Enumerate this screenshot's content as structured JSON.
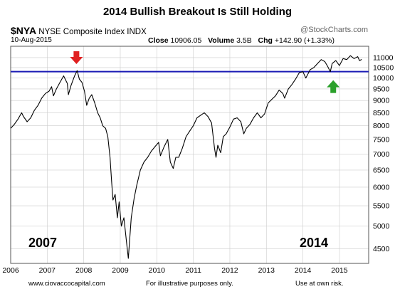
{
  "header": {
    "title": "2014 Bullish Breakout Is Still Holding",
    "symbol": "$NYA",
    "name": "NYSE Composite Index",
    "exchange": "INDX",
    "date": "10-Aug-2015",
    "close_label": "Close",
    "close_value": "10906.05",
    "volume_label": "Volume",
    "volume_value": "3.5B",
    "chg_label": "Chg",
    "chg_value": "+142.90 (+1.33%)",
    "brand": "@StockCharts.com"
  },
  "footer": {
    "left": "www.ciovaccocapital.com",
    "middle": "For illustrative purposes only.",
    "right": "Use at own risk."
  },
  "colors": {
    "price_line": "#000000",
    "support_line": "#1a1ab4",
    "red_arrow": "#e02020",
    "green_arrow": "#2aa02a",
    "grid": "#cccccc"
  },
  "chart_data": {
    "type": "line",
    "title": "2014 Bullish Breakout Is Still Holding",
    "scale": "log",
    "x_ticks": [
      "2006",
      "2007",
      "2008",
      "2009",
      "2010",
      "2011",
      "2012",
      "2013",
      "2014",
      "2015"
    ],
    "y_ticks": [
      4500,
      5000,
      5500,
      6000,
      6500,
      7000,
      7500,
      8000,
      8500,
      9000,
      9500,
      10000,
      10500,
      11000
    ],
    "ylim": [
      4200,
      11600
    ],
    "xlim": [
      2006.0,
      2015.8
    ],
    "grid": true,
    "series": [
      {
        "x": [
          2006.0,
          2006.1,
          2006.2,
          2006.3,
          2006.35,
          2006.45,
          2006.55,
          2006.65,
          2006.75,
          2006.85,
          2006.95,
          2007.05,
          2007.12,
          2007.17,
          2007.25,
          2007.35,
          2007.45,
          2007.55,
          2007.58,
          2007.65,
          2007.75,
          2007.82,
          2007.88,
          2007.95,
          2008.02,
          2008.08,
          2008.15,
          2008.22,
          2008.3,
          2008.38,
          2008.45,
          2008.52,
          2008.6,
          2008.66,
          2008.72,
          2008.76,
          2008.8,
          2008.86,
          2008.92,
          2008.97,
          2009.03,
          2009.1,
          2009.17,
          2009.22,
          2009.3,
          2009.38,
          2009.45,
          2009.55,
          2009.65,
          2009.75,
          2009.85,
          2009.95,
          2010.05,
          2010.1,
          2010.2,
          2010.3,
          2010.37,
          2010.45,
          2010.52,
          2010.6,
          2010.7,
          2010.8,
          2010.9,
          2011.0,
          2011.1,
          2011.2,
          2011.3,
          2011.4,
          2011.5,
          2011.58,
          2011.62,
          2011.67,
          2011.75,
          2011.82,
          2011.9,
          2012.0,
          2012.1,
          2012.2,
          2012.3,
          2012.38,
          2012.45,
          2012.55,
          2012.65,
          2012.75,
          2012.85,
          2012.95,
          2013.05,
          2013.15,
          2013.25,
          2013.35,
          2013.45,
          2013.5,
          2013.6,
          2013.7,
          2013.8,
          2013.9,
          2014.0,
          2014.08,
          2014.2,
          2014.3,
          2014.4,
          2014.5,
          2014.6,
          2014.68,
          2014.75,
          2014.8,
          2014.9,
          2015.0,
          2015.1,
          2015.2,
          2015.3,
          2015.4,
          2015.5,
          2015.55,
          2015.61
        ],
        "y": [
          7900,
          8050,
          8250,
          8500,
          8350,
          8150,
          8300,
          8600,
          8800,
          9100,
          9300,
          9400,
          9600,
          9200,
          9500,
          9800,
          10100,
          9750,
          9250,
          9650,
          10100,
          10350,
          9950,
          9800,
          9400,
          8800,
          9100,
          9250,
          8900,
          8500,
          8300,
          8000,
          7900,
          7600,
          6900,
          6200,
          5650,
          5800,
          5200,
          5600,
          5000,
          5200,
          4650,
          4300,
          5200,
          5700,
          6050,
          6500,
          6750,
          6900,
          7100,
          7250,
          7400,
          6950,
          7250,
          7500,
          6750,
          6550,
          6900,
          6900,
          7200,
          7600,
          7800,
          8000,
          8300,
          8400,
          8500,
          8350,
          8100,
          7200,
          6900,
          7300,
          7050,
          7600,
          7700,
          7950,
          8250,
          8300,
          8150,
          7700,
          7900,
          8050,
          8300,
          8500,
          8300,
          8450,
          8900,
          9050,
          9200,
          9450,
          9300,
          9100,
          9500,
          9700,
          9950,
          10250,
          10300,
          10000,
          10400,
          10500,
          10700,
          10900,
          10800,
          10550,
          10300,
          10700,
          10850,
          10600,
          10950,
          10900,
          11100,
          10950,
          11050,
          10850,
          10906
        ]
      }
    ],
    "support_level": 10300,
    "labels": [
      "2007",
      "2014"
    ],
    "markers": [
      {
        "type": "down-arrow",
        "color": "red",
        "x": 2007.8
      },
      {
        "type": "up-arrow",
        "color": "green",
        "x": 2014.83
      }
    ]
  }
}
